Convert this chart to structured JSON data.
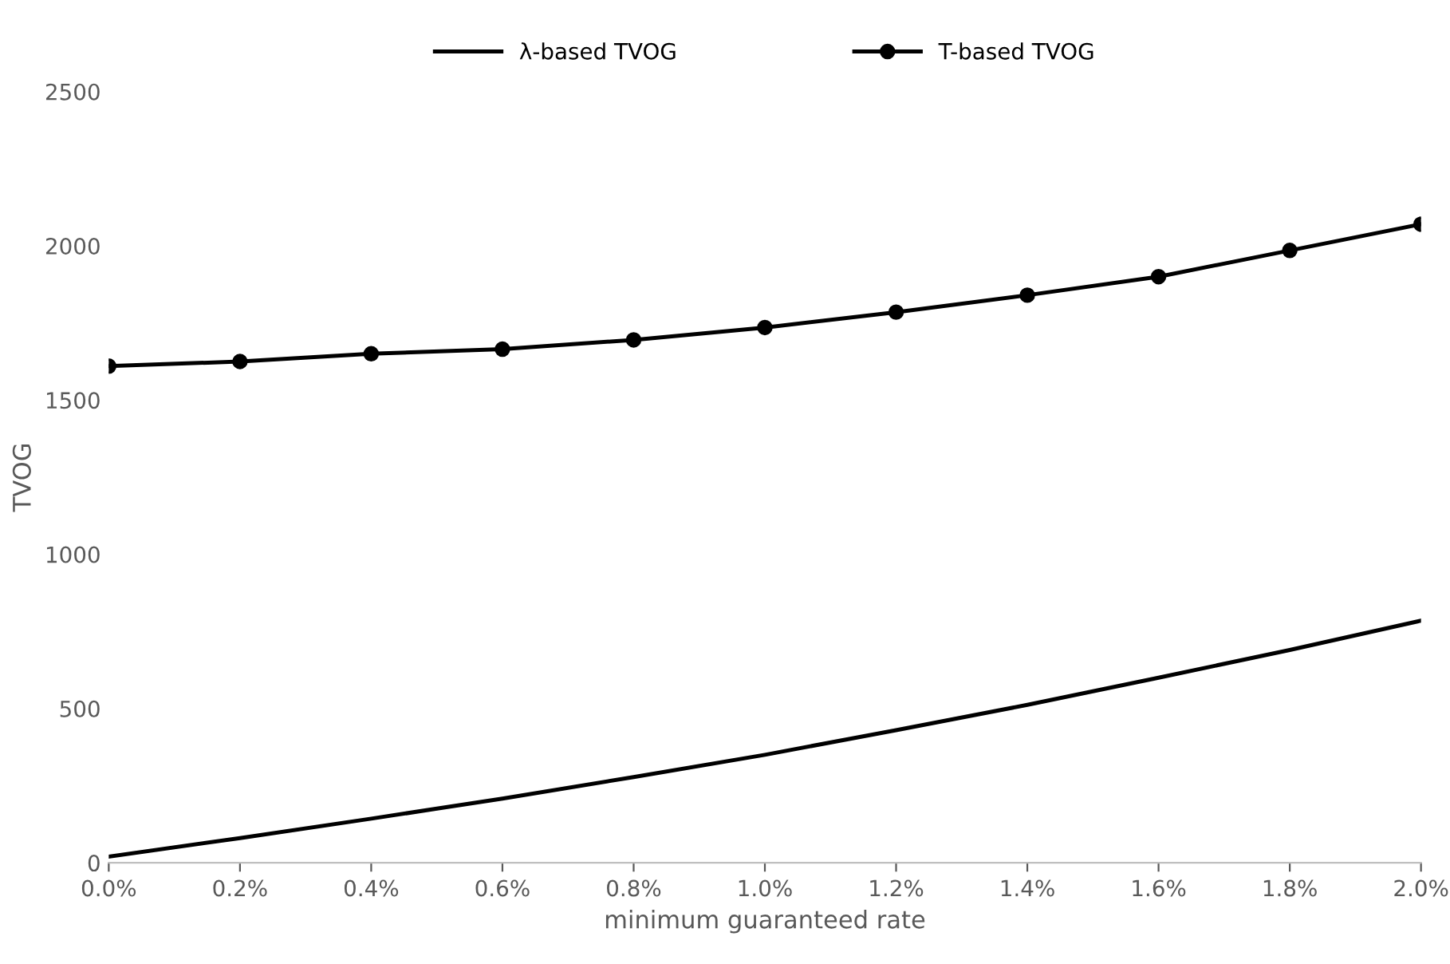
{
  "chart_data": {
    "type": "line",
    "xlabel": "minimum guaranteed rate",
    "ylabel": "TVOG",
    "x": [
      0,
      0.2,
      0.4,
      0.6,
      0.8,
      1.0,
      1.2,
      1.4,
      1.6,
      1.8,
      2.0
    ],
    "series": [
      {
        "name": "λ-based TVOG",
        "color": "#000000",
        "marker": "none",
        "values": [
          20,
          80,
          143,
          208,
          278,
          350,
          430,
          512,
          600,
          690,
          785
        ]
      },
      {
        "name": "T-based TVOG",
        "color": "#000000",
        "marker": "circle",
        "values": [
          1610,
          1625,
          1650,
          1665,
          1695,
          1735,
          1785,
          1840,
          1900,
          1985,
          2070
        ]
      }
    ],
    "xlim": [
      0,
      2
    ],
    "xticks": [
      {
        "value": 0,
        "label": "0.0%"
      },
      {
        "value": 0.2,
        "label": "0.2%"
      },
      {
        "value": 0.4,
        "label": "0.4%"
      },
      {
        "value": 0.6,
        "label": "0.6%"
      },
      {
        "value": 0.8,
        "label": "0.8%"
      },
      {
        "value": 1.0,
        "label": "1.0%"
      },
      {
        "value": 1.2,
        "label": "1.2%"
      },
      {
        "value": 1.4,
        "label": "1.4%"
      },
      {
        "value": 1.6,
        "label": "1.6%"
      },
      {
        "value": 1.8,
        "label": "1.8%"
      },
      {
        "value": 2.0,
        "label": "2.0%"
      }
    ],
    "ylim": [
      0,
      2500
    ],
    "yticks": [
      0,
      500,
      1000,
      1500,
      2000,
      2500
    ],
    "grid": false,
    "legend": "top",
    "line_style": "solid"
  }
}
